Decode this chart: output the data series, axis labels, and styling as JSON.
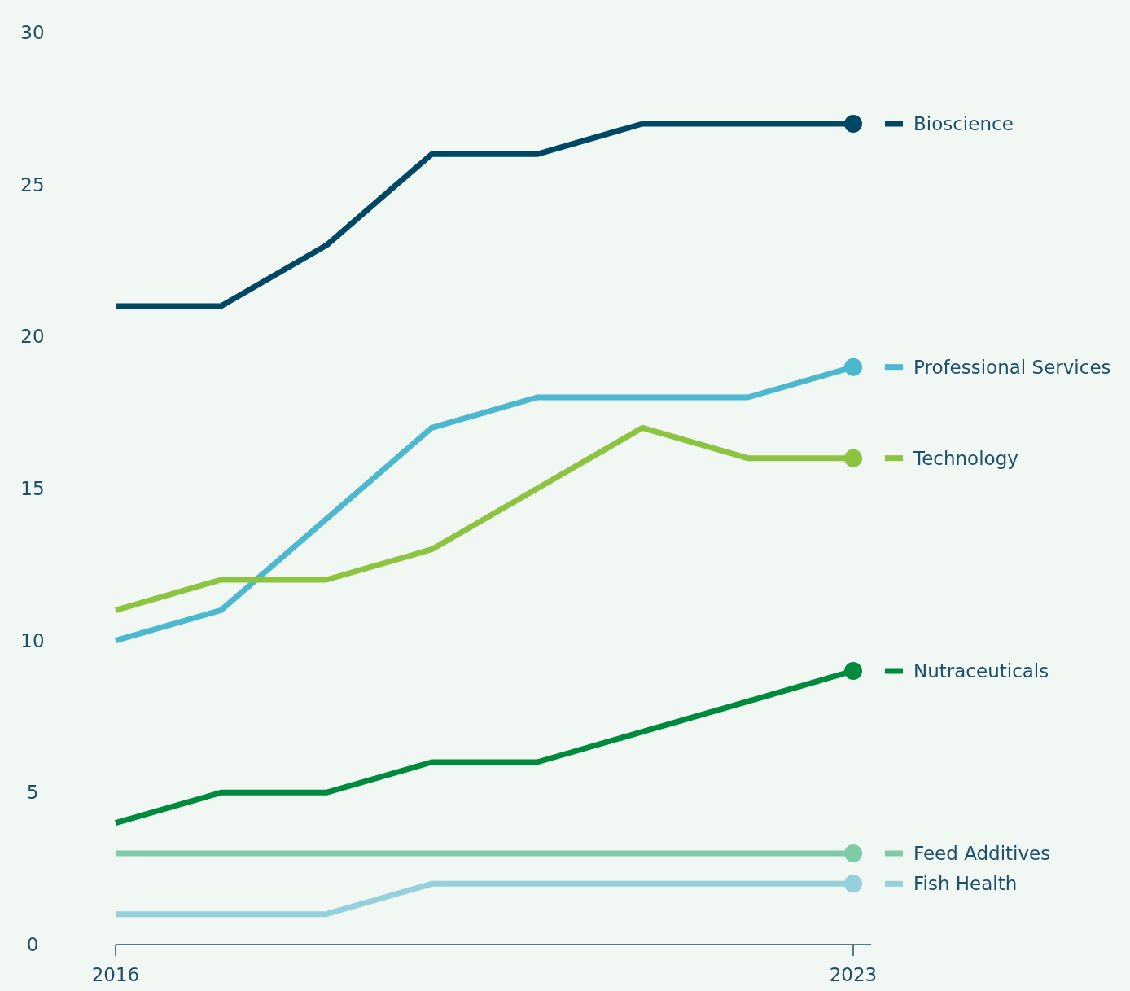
{
  "chart_data": {
    "type": "line",
    "x": [
      2016,
      2017,
      2018,
      2019,
      2020,
      2021,
      2022,
      2023
    ],
    "xlim": [
      2016,
      2023.17
    ],
    "xticks": [
      2016,
      2023
    ],
    "ylim": [
      0,
      30
    ],
    "yticks": [
      0,
      5,
      10,
      15,
      20,
      25,
      30
    ],
    "grid": false,
    "legend": "right",
    "line_style": "solid",
    "series": [
      {
        "name": "Bioscience",
        "color": "#004764",
        "values": [
          21,
          21,
          23,
          26,
          26,
          27,
          27,
          27
        ]
      },
      {
        "name": "Professional Services",
        "color": "#4cb8cf",
        "values": [
          10,
          11,
          14,
          17,
          18,
          18,
          18,
          19
        ]
      },
      {
        "name": "Technology",
        "color": "#8cc43f",
        "values": [
          11,
          12,
          12,
          13,
          15,
          17,
          16,
          16
        ]
      },
      {
        "name": "Nutraceuticals",
        "color": "#008a3e",
        "values": [
          4,
          5,
          5,
          6,
          6,
          7,
          8,
          9
        ]
      },
      {
        "name": "Feed Additives",
        "color": "#7fcaa7",
        "values": [
          3,
          3,
          3,
          3,
          3,
          3,
          3,
          3
        ]
      },
      {
        "name": "Fish Health",
        "color": "#96d0dd",
        "values": [
          1,
          1,
          1,
          2,
          2,
          2,
          2,
          2
        ]
      }
    ]
  }
}
